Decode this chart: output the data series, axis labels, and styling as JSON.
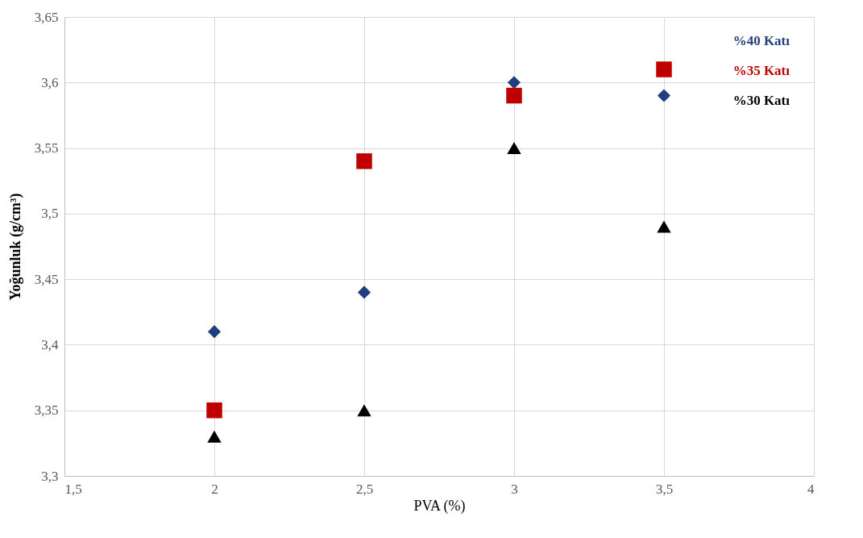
{
  "chart_data": {
    "type": "scatter",
    "xlabel": "PVA (%)",
    "ylabel": "Yoğunluk (g/cm³)",
    "x": [
      2,
      2.5,
      3,
      3.5
    ],
    "series": [
      {
        "name": "%40 Katı",
        "color": "#203f7f",
        "marker": "diamond",
        "values": [
          3.41,
          3.44,
          3.6,
          3.59
        ]
      },
      {
        "name": "%35 Katı",
        "color": "#c00000",
        "marker": "square",
        "values": [
          3.35,
          3.54,
          3.59,
          3.61
        ]
      },
      {
        "name": "%30 Katı",
        "color": "#000000",
        "marker": "triangle",
        "values": [
          3.33,
          3.35,
          3.55,
          3.49
        ]
      }
    ],
    "xlim": [
      1.5,
      4
    ],
    "xticks": [
      {
        "value": 1.5,
        "label": "1,5"
      },
      2,
      {
        "value": 2.5,
        "label": "2,5"
      },
      3,
      {
        "value": 3.5,
        "label": "3,5"
      },
      4
    ],
    "ylim": [
      3.3,
      3.65
    ],
    "yticks": [
      {
        "value": 3.3,
        "label": "3,3"
      },
      {
        "value": 3.35,
        "label": "3,35"
      },
      {
        "value": 3.4,
        "label": "3,4"
      },
      {
        "value": 3.45,
        "label": "3,45"
      },
      {
        "value": 3.5,
        "label": "3,5"
      },
      {
        "value": 3.55,
        "label": "3,55"
      },
      {
        "value": 3.6,
        "label": "3,6"
      },
      {
        "value": 3.65,
        "label": "3,65"
      }
    ],
    "grid": true,
    "legend": "top right"
  }
}
